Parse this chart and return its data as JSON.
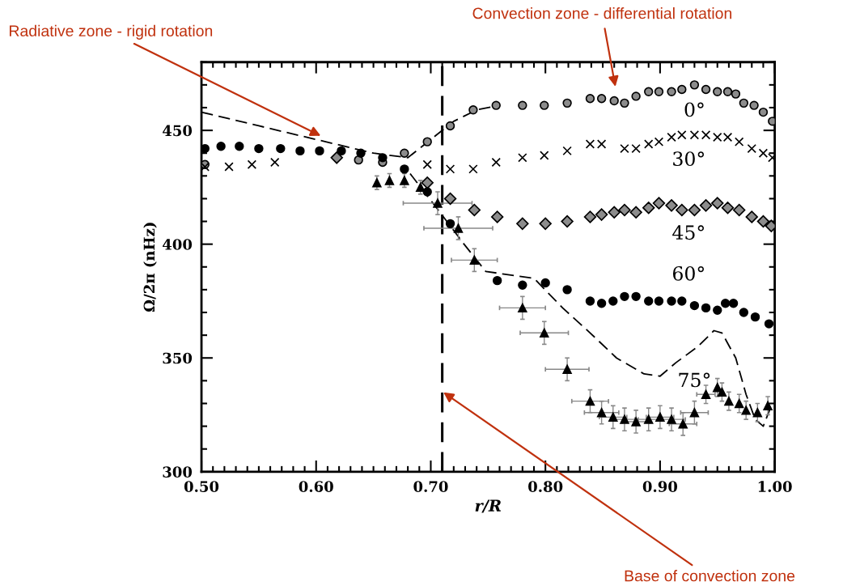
{
  "chart_data": {
    "type": "scatter",
    "xlabel": "r/R",
    "ylabel": "Ω/2π (nHz)",
    "xlim": [
      0.5,
      1.0
    ],
    "ylim": [
      300,
      480
    ],
    "xticks": [
      {
        "value": 0.5,
        "label": "0.50"
      },
      {
        "value": 0.6,
        "label": "0.60"
      },
      {
        "value": 0.7,
        "label": "0.70"
      },
      {
        "value": 0.8,
        "label": "0.80"
      },
      {
        "value": 0.9,
        "label": "0.90"
      },
      {
        "value": 1.0,
        "label": "1.00"
      }
    ],
    "yticks": [
      300,
      350,
      400,
      450
    ],
    "grid": false,
    "series": [
      {
        "name": "0°",
        "marker": "circle",
        "color": "#8c8c8c",
        "x": [
          0.503,
          0.619,
          0.637,
          0.658,
          0.677,
          0.697,
          0.717,
          0.737,
          0.757,
          0.78,
          0.799,
          0.819,
          0.839,
          0.849,
          0.86,
          0.869,
          0.879,
          0.89,
          0.899,
          0.91,
          0.919,
          0.93,
          0.94,
          0.95,
          0.959,
          0.966,
          0.973,
          0.982,
          0.99,
          0.998
        ],
        "values": [
          435,
          null,
          437,
          436,
          440,
          445,
          452,
          459,
          461,
          461,
          461,
          462,
          464,
          464,
          463,
          462,
          465,
          467,
          467,
          467,
          468,
          470,
          468,
          467,
          467,
          466,
          462,
          461,
          458,
          454
        ]
      },
      {
        "name": "30°",
        "marker": "cross",
        "color": "#000000",
        "x": [
          0.503,
          0.524,
          0.544,
          0.564,
          0.697,
          0.717,
          0.737,
          0.757,
          0.78,
          0.799,
          0.819,
          0.839,
          0.849,
          0.869,
          0.879,
          0.89,
          0.899,
          0.91,
          0.919,
          0.93,
          0.94,
          0.95,
          0.959,
          0.969,
          0.98,
          0.99,
          0.998
        ],
        "values": [
          434,
          434,
          435,
          436,
          435,
          433,
          433,
          436,
          438,
          439,
          441,
          444,
          444,
          442,
          442,
          444,
          445,
          447,
          448,
          448,
          448,
          447,
          447,
          445,
          442,
          440,
          438
        ]
      },
      {
        "name": "45°",
        "marker": "diamond",
        "color": "#8c8c8c",
        "x": [
          0.618,
          0.697,
          0.717,
          0.738,
          0.758,
          0.78,
          0.8,
          0.819,
          0.839,
          0.849,
          0.86,
          0.869,
          0.879,
          0.89,
          0.899,
          0.91,
          0.919,
          0.93,
          0.94,
          0.95,
          0.959,
          0.969,
          0.98,
          0.99,
          0.997
        ],
        "values": [
          438,
          427,
          420,
          415,
          412,
          409,
          409,
          410,
          412,
          413,
          414,
          415,
          414,
          416,
          418,
          417,
          415,
          415,
          417,
          418,
          416,
          415,
          412,
          410,
          408
        ]
      },
      {
        "name": "60°",
        "marker": "circle",
        "color": "#000000",
        "x": [
          0.503,
          0.517,
          0.533,
          0.55,
          0.569,
          0.586,
          0.603,
          0.622,
          0.639,
          0.658,
          0.677,
          0.697,
          0.717,
          0.758,
          0.78,
          0.8,
          0.819,
          0.839,
          0.849,
          0.859,
          0.869,
          0.879,
          0.89,
          0.899,
          0.91,
          0.919,
          0.93,
          0.94,
          0.95,
          0.957,
          0.964,
          0.973,
          0.983,
          0.995
        ],
        "values": [
          442,
          443,
          443,
          442,
          442,
          441,
          441,
          441,
          440,
          438,
          433,
          423,
          409,
          384,
          382,
          383,
          380,
          375,
          374,
          375,
          377,
          377,
          375,
          375,
          375,
          375,
          373,
          372,
          371,
          374,
          374,
          370,
          368,
          365
        ]
      },
      {
        "name": "75°",
        "marker": "triangle",
        "color": "#000000",
        "x": [
          0.653,
          0.664,
          0.677,
          0.691,
          0.706,
          0.724,
          0.738,
          0.78,
          0.799,
          0.819,
          0.839,
          0.849,
          0.859,
          0.869,
          0.879,
          0.89,
          0.9,
          0.91,
          0.92,
          0.93,
          0.94,
          0.95,
          0.954,
          0.96,
          0.969,
          0.975,
          0.985,
          0.994
        ],
        "values": [
          427,
          428,
          428,
          425,
          418,
          407,
          393,
          372,
          361,
          345,
          331,
          326,
          324,
          323,
          322,
          323,
          324,
          323,
          321,
          326,
          334,
          337,
          335,
          331,
          330,
          327,
          326,
          329
        ],
        "errors": [
          3,
          3,
          3,
          3,
          5,
          5,
          5,
          5,
          5,
          5,
          5,
          5,
          5,
          5,
          5,
          5,
          5,
          5,
          5,
          5,
          4,
          4,
          4,
          4,
          4,
          4,
          4,
          4
        ],
        "xerrors": [
          null,
          null,
          null,
          null,
          0.03,
          0.03,
          0.02,
          0.02,
          0.021,
          0.019,
          0.016,
          0.015,
          0.012,
          0.012,
          0.012,
          0.012,
          0.012,
          0.012,
          0.012,
          0.012,
          0.008,
          null,
          null,
          null,
          null,
          null,
          null,
          null
        ]
      },
      {
        "type": "line",
        "line_style": "dashed",
        "color": "#000000",
        "x": [
          0.5,
          0.55,
          0.6,
          0.65,
          0.68,
          0.7,
          0.72,
          0.74,
          0.76
        ],
        "values": [
          458,
          452,
          446,
          440,
          438,
          446,
          454,
          459,
          461
        ]
      },
      {
        "type": "line",
        "line_style": "dashed",
        "color": "#000000",
        "x": [
          0.682,
          0.705,
          0.729,
          0.748,
          0.79,
          0.815,
          0.839,
          0.862,
          0.886,
          0.9,
          0.914,
          0.933,
          0.947,
          0.954,
          0.966,
          0.975,
          0.983,
          0.99,
          0.997
        ],
        "values": [
          431,
          416,
          400,
          388,
          385,
          372,
          361,
          350,
          343,
          342,
          348,
          355,
          362,
          361,
          350,
          334,
          323,
          320,
          329
        ]
      }
    ],
    "ref_lines": [
      {
        "axis": "x",
        "value": 0.71,
        "line_style": "dashed",
        "color": "#000000"
      }
    ],
    "annotations": [
      "Radiative zone - rigid rotation",
      "Convection zone - differential rotation",
      "Base of convection zone"
    ]
  }
}
